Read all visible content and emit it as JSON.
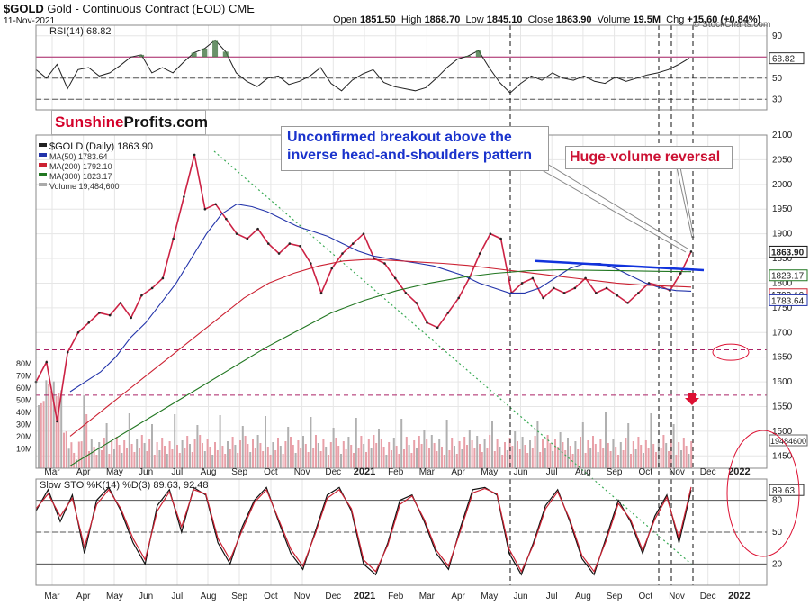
{
  "header": {
    "symbol": "$GOLD",
    "name": "Gold - Continuous Contract (EOD)",
    "exchange": "CME",
    "date": "11-Nov-2021",
    "open_label": "Open",
    "open": "1851.50",
    "high_label": "High",
    "high": "1868.70",
    "low_label": "Low",
    "low": "1845.10",
    "close_label": "Close",
    "close": "1863.90",
    "volume_label": "Volume",
    "volume": "19.5M",
    "chg_label": "Chg",
    "chg": "+15.60 (+0.84%)",
    "watermark": "© StockCharts.com"
  },
  "brand": {
    "part1": "Sunshine",
    "part2": "Profits.com"
  },
  "annotations": {
    "breakout_line1": "Unconfirmed breakout above the",
    "breakout_line2": "inverse head-and-shoulders pattern",
    "reversal": "Huge-volume reversal"
  },
  "colors": {
    "price_up": "#222222",
    "price_down": "#cc2244",
    "ma50": "#2233aa",
    "ma200": "#cc2233",
    "ma300": "#227722",
    "neckline": "#1133dd",
    "annotation_blue": "#1a33cc",
    "annotation_red": "#cc1133",
    "grid": "#e6e6e6",
    "dotted_trend": "#3aaa55",
    "hline": "#aa2266"
  },
  "chart_data": [
    {
      "type": "line",
      "title": "RSI(14) 68.82",
      "ylim": [
        20,
        100
      ],
      "y_ticks": [
        "90",
        "70",
        "50",
        "30"
      ],
      "reference_lines": [
        70,
        50,
        30
      ],
      "last_value": "68.82",
      "series": [
        {
          "values": [
            58,
            50,
            63,
            40,
            58,
            60,
            52,
            55,
            62,
            70,
            72,
            55,
            60,
            55,
            65,
            74,
            78,
            86,
            75,
            55,
            47,
            42,
            50,
            52,
            44,
            47,
            52,
            60,
            45,
            38,
            48,
            54,
            58,
            46,
            42,
            40,
            38,
            41,
            50,
            60,
            68,
            71,
            76,
            60,
            46,
            36,
            45,
            52,
            48,
            55,
            50,
            48,
            52,
            47,
            45,
            51,
            47,
            50,
            53,
            55,
            58,
            63,
            68.82
          ]
        }
      ]
    },
    {
      "type": "line",
      "title": "$GOLD (Daily) 1863.90",
      "ylim": [
        1425,
        2100
      ],
      "y_ticks": [
        "2100",
        "2050",
        "2000",
        "1950",
        "1900",
        "1850",
        "1800",
        "1750",
        "1700",
        "1650",
        "1600",
        "1550",
        "1500",
        "1450"
      ],
      "x_ticks": [
        "Mar",
        "Apr",
        "May",
        "Jun",
        "Jul",
        "Aug",
        "Sep",
        "Oct",
        "Nov",
        "Dec",
        "2021",
        "Feb",
        "Mar",
        "Apr",
        "May",
        "Jun",
        "Jul",
        "Aug",
        "Sep",
        "Oct",
        "Nov",
        "Dec",
        "2022"
      ],
      "legend": [
        {
          "label": "$GOLD (Daily) 1863.90",
          "color": "#222222"
        },
        {
          "label": "MA(50) 1783.64",
          "color": "#2233aa"
        },
        {
          "label": "MA(200) 1792.10",
          "color": "#cc2233"
        },
        {
          "label": "MA(300) 1823.17",
          "color": "#227722"
        },
        {
          "label": "Volume 19,484,600",
          "color": "#aaaaaa"
        }
      ],
      "right_labels": [
        "1863.90",
        "1823.17",
        "1792.10",
        "1783.64",
        "19484600"
      ],
      "horizontal_levels": [
        1665,
        1573
      ],
      "series": [
        {
          "name": "$GOLD (Daily)",
          "values": [
            1600,
            1640,
            1520,
            1660,
            1700,
            1720,
            1740,
            1735,
            1760,
            1730,
            1775,
            1790,
            1810,
            1890,
            1975,
            2060,
            1950,
            1960,
            1930,
            1900,
            1890,
            1910,
            1880,
            1860,
            1880,
            1875,
            1840,
            1780,
            1830,
            1860,
            1880,
            1900,
            1850,
            1840,
            1810,
            1780,
            1760,
            1720,
            1710,
            1740,
            1770,
            1810,
            1860,
            1900,
            1890,
            1780,
            1800,
            1810,
            1770,
            1790,
            1780,
            1790,
            1810,
            1780,
            1790,
            1775,
            1760,
            1780,
            1800,
            1795,
            1785,
            1820,
            1863.9
          ]
        },
        {
          "name": "MA(50)",
          "values": [
            1580,
            1600,
            1620,
            1650,
            1690,
            1720,
            1760,
            1800,
            1850,
            1900,
            1940,
            1960,
            1955,
            1945,
            1930,
            1915,
            1905,
            1895,
            1880,
            1865,
            1855,
            1850,
            1845,
            1840,
            1835,
            1825,
            1815,
            1800,
            1790,
            1780,
            1780,
            1790,
            1810,
            1830,
            1840,
            1840,
            1830,
            1815,
            1800,
            1790,
            1785,
            1783.64
          ]
        },
        {
          "name": "MA(200)",
          "values": [
            1490,
            1530,
            1570,
            1610,
            1650,
            1690,
            1730,
            1770,
            1800,
            1820,
            1835,
            1845,
            1848,
            1846,
            1843,
            1840,
            1836,
            1830,
            1824,
            1818,
            1812,
            1806,
            1800,
            1796,
            1794,
            1792.1
          ]
        },
        {
          "name": "MA(300)",
          "values": [
            1430,
            1470,
            1510,
            1550,
            1590,
            1630,
            1670,
            1705,
            1740,
            1765,
            1785,
            1800,
            1812,
            1820,
            1825,
            1827,
            1826,
            1825,
            1824,
            1823.17
          ]
        }
      ],
      "neckline": [
        1830,
        1834
      ],
      "volume_ticks": [
        "80M",
        "70M",
        "60M",
        "50M",
        "40M",
        "30M",
        "20M",
        "10M"
      ]
    },
    {
      "type": "line",
      "title": "Slow STO %K(14) %D(3) 89.63, 92.48",
      "ylim": [
        0,
        100
      ],
      "y_ticks": [
        "80",
        "50",
        "20"
      ],
      "reference_lines": [
        80,
        50,
        20
      ],
      "last_value": "89.63",
      "x_ticks": [
        "Mar",
        "Apr",
        "May",
        "Jun",
        "Jul",
        "Aug",
        "Sep",
        "Oct",
        "Nov",
        "Dec",
        "2022"
      ],
      "series": [
        {
          "name": "%K",
          "values": [
            70,
            90,
            60,
            85,
            30,
            80,
            92,
            70,
            40,
            20,
            75,
            90,
            50,
            92,
            85,
            40,
            20,
            55,
            80,
            92,
            60,
            30,
            15,
            50,
            85,
            92,
            70,
            20,
            10,
            40,
            80,
            85,
            60,
            30,
            15,
            55,
            90,
            92,
            85,
            30,
            10,
            40,
            75,
            90,
            60,
            25,
            10,
            45,
            80,
            60,
            30,
            65,
            85,
            40,
            89.63
          ]
        },
        {
          "name": "%D",
          "values": [
            72,
            86,
            65,
            82,
            36,
            76,
            90,
            72,
            44,
            24,
            70,
            88,
            55,
            90,
            86,
            44,
            24,
            52,
            78,
            90,
            62,
            34,
            18,
            48,
            82,
            90,
            72,
            24,
            13,
            38,
            76,
            84,
            62,
            33,
            18,
            52,
            87,
            91,
            86,
            34,
            13,
            38,
            72,
            88,
            62,
            28,
            13,
            42,
            77,
            62,
            33,
            62,
            83,
            44,
            92.48
          ]
        }
      ]
    }
  ]
}
